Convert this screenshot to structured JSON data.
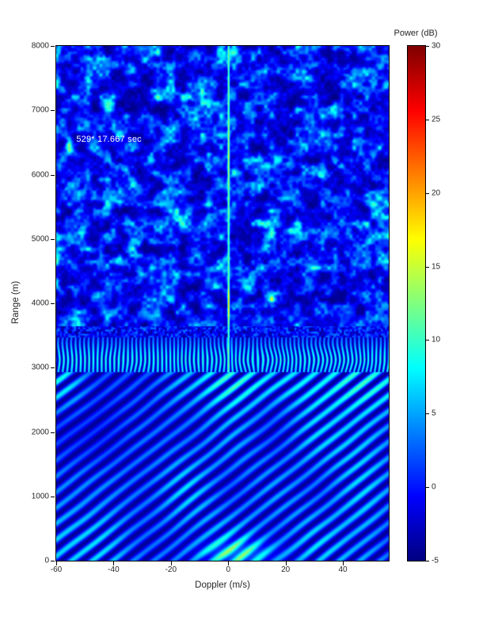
{
  "figure": {
    "background": "#ffffff"
  },
  "chart_data": {
    "type": "heatmap",
    "title": "",
    "xlabel": "Doppler (m/s)",
    "ylabel": "Range (m)",
    "x_range": [
      -60,
      56
    ],
    "y_range": [
      0,
      8000
    ],
    "x_ticks": [
      -60,
      -40,
      -20,
      0,
      20,
      40
    ],
    "y_ticks": [
      0,
      1000,
      2000,
      3000,
      4000,
      5000,
      6000,
      7000,
      8000
    ],
    "grid": false,
    "colormap": "jet",
    "colorbar": {
      "label": "Power (dB)",
      "min": -5,
      "max": 30,
      "ticks": [
        -5,
        0,
        5,
        10,
        15,
        20,
        25,
        30
      ],
      "position": "right"
    },
    "annotation": {
      "text": "529* 17.667 sec",
      "x": -53,
      "y": 6550,
      "color": "#ffffff"
    },
    "regions": [
      {
        "name": "noise-speckle",
        "range_m": [
          3650,
          8000
        ],
        "doppler_ms": [
          -60,
          56
        ],
        "power_db": [
          -5,
          18
        ],
        "description": "random clutter speckle, dark blue background with cyan/green blobs"
      },
      {
        "name": "dark-transition-band",
        "range_m": [
          3480,
          3650
        ],
        "doppler_ms": [
          -60,
          56
        ],
        "power_db": [
          -5,
          4
        ],
        "description": "fine dark checkered band"
      },
      {
        "name": "bright-comb-band",
        "range_m": [
          2940,
          3480
        ],
        "doppler_ms": [
          -60,
          56
        ],
        "power_db": [
          -4,
          10
        ],
        "description": "fine vertical striping, brightest near 3100 m"
      },
      {
        "name": "diagonal-interference",
        "range_m": [
          0,
          2940
        ],
        "doppler_ms": [
          -60,
          56
        ],
        "power_db": [
          -4,
          7
        ],
        "description": "diagonal stripes rising to the right"
      },
      {
        "name": "zero-doppler-line",
        "range_m": [
          2940,
          8000
        ],
        "doppler_ms": [
          0,
          0
        ],
        "power_db": [
          10,
          18
        ],
        "description": "bright vertical return at 0 m/s, peak near 4000 m"
      }
    ],
    "render": {
      "seed": 7,
      "zero_doppler_x": 0,
      "bands": {
        "speckle_min": 3650,
        "checker_min": 3480,
        "comb_min": 2940
      },
      "line_peaks": [
        {
          "range": 4000,
          "gain": 7
        },
        {
          "range": 6300,
          "gain": 3
        }
      ]
    }
  }
}
